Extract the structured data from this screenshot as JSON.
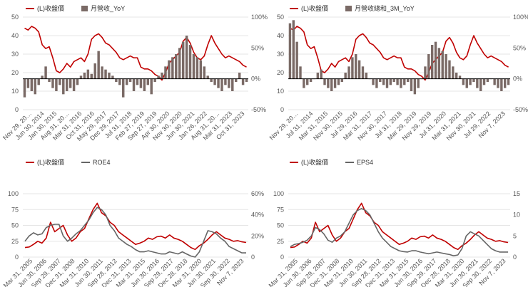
{
  "charts": [
    {
      "type": "line+bar",
      "legend": [
        "(L)收盤價",
        "月營收_YoY"
      ],
      "left_ticks": [
        "0",
        "10",
        "20",
        "30",
        "40",
        "50"
      ],
      "right_ticks": [
        "-50%",
        "0%",
        "50%",
        "100%"
      ],
      "x_labels": [
        "Nov 29, 20…",
        "Jun 30, 2014",
        "Jan 30, 2015",
        "Aug 31, 20…",
        "Mar 31, 2016",
        "Oct 31, 2016",
        "May 29, 2017",
        "Dec 29, 2017",
        "Jul 31, 2018",
        "Feb 27, 2019",
        "Sep 27, 2019",
        "Apr 30, 2020",
        "Nov 30, 2020",
        "Jun 30, 2021",
        "Jan 26, 2022",
        "Aug 31, 20…",
        "Mar 31, 2023",
        "Oct 31, 2023"
      ]
    },
    {
      "type": "line+bar",
      "legend": [
        "(L)收盤價",
        "月營收總和_3M_YoY"
      ],
      "left_ticks": [
        "0",
        "10",
        "20",
        "30",
        "40",
        "50"
      ],
      "right_ticks": [
        "-50%",
        "0%",
        "50%",
        "100%"
      ],
      "x_labels": [
        "Nov 29, 20…",
        "Jul 31, 2014",
        "Mar 31, 2015",
        "Nov 30, 2015",
        "Jul 29, 2016",
        "Mar 31, 2017",
        "Nov 30, 2017",
        "Jul 31, 2018",
        "Mar 29, 2019",
        "Nov 29, 2019",
        "Jul 31, 2020",
        "Mar 31, 2021",
        "Nov 30, 2021",
        "Jul 29, 2022",
        "Nov 7, 2023"
      ]
    },
    {
      "type": "line",
      "legend": [
        "(L)收盤價",
        "ROE4"
      ],
      "left_ticks": [
        "0",
        "25",
        "50",
        "75",
        "100"
      ],
      "right_ticks": [
        "0",
        "20%",
        "40%",
        "60%"
      ],
      "x_labels": [
        "Mar 31, 2005",
        "Jun 30, 2006",
        "Sep 29, 2007",
        "Dec 31, 2008",
        "Mar 31, 2010",
        "Jun 30, 2011",
        "Sep 28, 2012",
        "Dec 31, 2013",
        "Mar 31, 2015",
        "Jun 30, 2016",
        "Sep 29, 2017",
        "Dec 28, 2018",
        "Mar 31, 2020",
        "Jun 30, 2021",
        "Sep 30, 2022",
        "Nov 7, 2023"
      ]
    },
    {
      "type": "line",
      "legend": [
        "(L)收盤價",
        "EPS4"
      ],
      "left_ticks": [
        "0",
        "25",
        "50",
        "75",
        "100"
      ],
      "right_ticks": [
        "0",
        "5",
        "10",
        "15"
      ],
      "x_labels": [
        "Mar 31, 2005",
        "Jun 30, 2006",
        "Sep 29, 2007",
        "Dec 31, 2008",
        "Mar 31, 2010",
        "Jun 30, 2011",
        "Sep 28, 2012",
        "Dec 31, 2013",
        "Mar 31, 2015",
        "Jun 30, 2016",
        "Sep 29, 2017",
        "Dec 28, 2018",
        "Mar 31, 2020",
        "Jun 30, 2021",
        "Sep 30, 2022",
        "Nov 7, 2023"
      ]
    }
  ],
  "chart_data": [
    {
      "type": "line+bar",
      "series": [
        {
          "name": "(L)收盤價",
          "axis": "left",
          "ylim": [
            0,
            50
          ],
          "values": [
            44,
            43,
            45,
            44,
            42,
            35,
            33,
            34,
            28,
            21,
            20,
            22,
            25,
            23,
            26,
            27,
            28,
            26,
            30,
            38,
            40,
            41,
            39,
            36,
            35,
            33,
            31,
            28,
            27,
            28,
            29,
            28,
            28,
            23,
            22,
            22,
            21,
            19,
            18,
            16,
            20,
            25,
            27,
            29,
            31,
            37,
            39,
            36,
            31,
            28,
            27,
            29,
            35,
            40,
            36,
            33,
            30,
            28,
            29,
            28,
            27,
            26,
            24,
            23
          ]
        },
        {
          "name": "月營收_YoY",
          "axis": "right",
          "ylim": [
            -50,
            100
          ],
          "values": [
            -30,
            -15,
            -20,
            -25,
            -10,
            5,
            20,
            -5,
            -15,
            -20,
            -10,
            -25,
            -20,
            -15,
            -20,
            -10,
            5,
            10,
            15,
            8,
            25,
            45,
            20,
            15,
            10,
            5,
            -5,
            -10,
            -30,
            -10,
            -5,
            -20,
            -10,
            -15,
            -20,
            -10,
            -25,
            -5,
            5,
            10,
            20,
            30,
            35,
            40,
            50,
            60,
            70,
            55,
            40,
            35,
            30,
            20,
            5,
            -5,
            -10,
            -15,
            -20,
            -10,
            -15,
            -20,
            -5,
            10,
            -10,
            -5
          ]
        }
      ]
    },
    {
      "type": "line+bar",
      "series": [
        {
          "name": "(L)收盤價",
          "axis": "left",
          "ylim": [
            0,
            50
          ],
          "values": [
            44,
            43,
            45,
            44,
            42,
            35,
            33,
            34,
            28,
            21,
            20,
            22,
            25,
            23,
            26,
            27,
            28,
            26,
            30,
            38,
            40,
            41,
            39,
            36,
            35,
            33,
            31,
            28,
            27,
            28,
            29,
            28,
            28,
            23,
            22,
            22,
            21,
            19,
            18,
            16,
            20,
            25,
            27,
            29,
            31,
            37,
            39,
            36,
            31,
            28,
            27,
            29,
            35,
            40,
            36,
            33,
            30,
            28,
            29,
            28,
            27,
            26,
            24,
            23
          ]
        },
        {
          "name": "月營收總和_3M_YoY",
          "axis": "right",
          "ylim": [
            -50,
            100
          ],
          "values": [
            90,
            95,
            60,
            20,
            -15,
            -10,
            -5,
            0,
            10,
            15,
            -10,
            -15,
            -20,
            -15,
            -10,
            -5,
            10,
            20,
            35,
            40,
            30,
            20,
            10,
            0,
            -10,
            -15,
            -5,
            -10,
            -15,
            -10,
            -5,
            -10,
            -15,
            -10,
            -5,
            -20,
            -25,
            -15,
            0,
            20,
            40,
            55,
            60,
            50,
            45,
            40,
            30,
            20,
            10,
            5,
            -10,
            -15,
            -10,
            -5,
            -15,
            -20,
            -10,
            -5,
            0,
            -10,
            -15,
            -20,
            -15,
            -10
          ]
        }
      ]
    },
    {
      "type": "line",
      "series": [
        {
          "name": "(L)收盤價",
          "axis": "left",
          "ylim": [
            0,
            100
          ],
          "values": [
            15,
            16,
            20,
            25,
            22,
            30,
            55,
            40,
            45,
            50,
            35,
            25,
            30,
            40,
            45,
            60,
            75,
            85,
            70,
            65,
            55,
            50,
            40,
            35,
            30,
            25,
            20,
            22,
            25,
            30,
            28,
            32,
            33,
            30,
            35,
            30,
            28,
            25,
            20,
            15,
            12,
            18,
            22,
            28,
            35,
            40,
            35,
            30,
            28,
            25,
            26,
            24,
            23
          ]
        },
        {
          "name": "ROE4",
          "axis": "right",
          "ylim": [
            0,
            60
          ],
          "values": [
            15,
            20,
            23,
            21,
            22,
            28,
            30,
            31,
            31,
            20,
            15,
            18,
            22,
            25,
            30,
            35,
            42,
            47,
            45,
            40,
            30,
            25,
            18,
            15,
            12,
            10,
            7,
            5,
            5,
            6,
            5,
            4,
            3,
            3,
            5,
            4,
            3,
            5,
            3,
            1,
            0,
            5,
            15,
            25,
            24,
            22,
            18,
            15,
            10,
            8,
            6,
            4,
            4
          ]
        }
      ]
    },
    {
      "type": "line",
      "series": [
        {
          "name": "(L)收盤價",
          "axis": "left",
          "ylim": [
            0,
            100
          ],
          "values": [
            15,
            16,
            20,
            25,
            22,
            30,
            55,
            40,
            45,
            50,
            35,
            25,
            30,
            40,
            45,
            60,
            75,
            85,
            70,
            65,
            55,
            50,
            40,
            35,
            30,
            25,
            20,
            22,
            25,
            30,
            28,
            32,
            33,
            30,
            35,
            30,
            28,
            25,
            20,
            15,
            12,
            18,
            22,
            28,
            35,
            40,
            35,
            30,
            28,
            25,
            26,
            24,
            23
          ]
        },
        {
          "name": "EPS4",
          "axis": "right",
          "ylim": [
            0,
            15
          ],
          "values": [
            2.5,
            3,
            3.2,
            3.5,
            4,
            5,
            7,
            6.5,
            5.5,
            4,
            3.5,
            4.5,
            5,
            6,
            8,
            10,
            11,
            11.5,
            11,
            10,
            8,
            6,
            4.5,
            3.5,
            2.5,
            2,
            1.5,
            1.3,
            1.2,
            1.5,
            1.5,
            1.2,
            1,
            0.8,
            1,
            1.2,
            1,
            0.8,
            0.6,
            0.3,
            0.5,
            2,
            5,
            6,
            5.5,
            5,
            4,
            3,
            2,
            1.5,
            1.2,
            1.2,
            1.2
          ]
        }
      ]
    }
  ],
  "colors": {
    "price": "#c00000",
    "bar": "#7a6a66",
    "line2": "#666666",
    "zero": "#000000",
    "text": "#555555"
  }
}
